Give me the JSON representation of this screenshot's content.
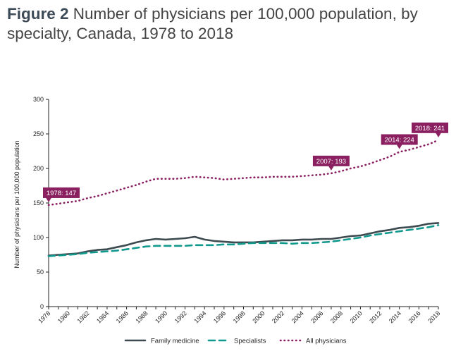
{
  "title": {
    "prefix": "Figure 2",
    "text": " Number of physicians per 100,000 population, by specialty, Canada, 1978 to 2018"
  },
  "chart_data": {
    "type": "line",
    "ylabel": "Number of physicians per 100,000 population",
    "xlabel": "",
    "ylim": [
      0,
      300
    ],
    "yticks": [
      0,
      50,
      100,
      150,
      200,
      250,
      300
    ],
    "x": [
      1978,
      1979,
      1980,
      1981,
      1982,
      1983,
      1984,
      1985,
      1986,
      1987,
      1988,
      1989,
      1990,
      1991,
      1992,
      1993,
      1994,
      1995,
      1996,
      1997,
      1998,
      1999,
      2000,
      2001,
      2002,
      2003,
      2004,
      2005,
      2006,
      2007,
      2008,
      2009,
      2010,
      2011,
      2012,
      2013,
      2014,
      2015,
      2016,
      2017,
      2018
    ],
    "xticks": [
      1978,
      1980,
      1982,
      1984,
      1986,
      1988,
      1990,
      1992,
      1994,
      1996,
      1998,
      2000,
      2002,
      2004,
      2006,
      2008,
      2010,
      2012,
      2014,
      2016,
      2018
    ],
    "series": [
      {
        "name": "Family medicine",
        "style": "solid",
        "color": "#3d4a4f",
        "values": [
          74,
          75,
          76,
          77,
          80,
          82,
          83,
          86,
          89,
          93,
          96,
          98,
          97,
          98,
          99,
          101,
          97,
          95,
          94,
          93,
          93,
          93,
          94,
          95,
          96,
          96,
          97,
          97,
          98,
          98,
          100,
          102,
          103,
          106,
          109,
          111,
          114,
          115,
          117,
          120,
          121
        ]
      },
      {
        "name": "Specialists",
        "style": "dashed",
        "color": "#11998e",
        "values": [
          73,
          74,
          75,
          76,
          78,
          79,
          80,
          81,
          83,
          85,
          87,
          88,
          88,
          88,
          88,
          89,
          89,
          89,
          90,
          90,
          91,
          92,
          92,
          92,
          92,
          91,
          92,
          92,
          93,
          94,
          96,
          98,
          100,
          103,
          105,
          107,
          109,
          111,
          113,
          115,
          118
        ]
      },
      {
        "name": "All physicians",
        "style": "dotted",
        "color": "#8a2060",
        "values": [
          147,
          149,
          151,
          153,
          157,
          160,
          164,
          168,
          172,
          176,
          181,
          185,
          185,
          185,
          186,
          188,
          187,
          186,
          184,
          185,
          186,
          187,
          187,
          188,
          188,
          188,
          189,
          190,
          191,
          193,
          196,
          200,
          203,
          207,
          212,
          217,
          224,
          227,
          231,
          235,
          241
        ]
      }
    ],
    "annotations": [
      {
        "x": 1978,
        "y": 147,
        "text": "1978: 147"
      },
      {
        "x": 2007,
        "y": 193,
        "text": "2007: 193"
      },
      {
        "x": 2014,
        "y": 224,
        "text": "2014: 224"
      },
      {
        "x": 2018,
        "y": 241,
        "text": "2018: 241"
      }
    ],
    "callout_color": "#8a2060",
    "axis_color": "#222222",
    "legend_position": "bottom"
  }
}
